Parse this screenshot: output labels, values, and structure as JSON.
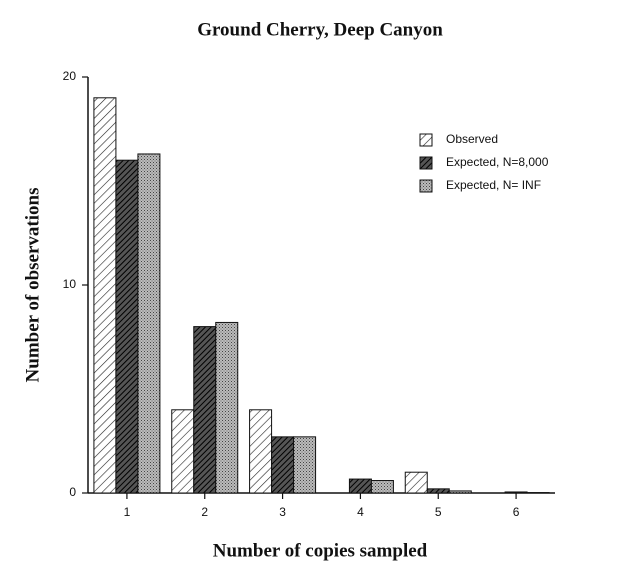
{
  "chart_data": {
    "type": "bar",
    "title": "Ground Cherry, Deep Canyon",
    "x_label": "Number of copies sampled",
    "y_label": "Number of observations",
    "categories": [
      "1",
      "2",
      "3",
      "4",
      "5",
      "6"
    ],
    "series": [
      {
        "name": "Observed",
        "color": "#ffffff",
        "pattern": "hatch-light",
        "values": [
          19,
          4,
          4,
          0,
          1,
          0
        ]
      },
      {
        "name": "Expected, N=8,000",
        "color": "#222222",
        "pattern": "hatch-dark",
        "values": [
          16,
          8,
          2.7,
          0.67,
          0.2,
          0.05
        ]
      },
      {
        "name": "Expected, N= INF",
        "color": "#999999",
        "pattern": "dots",
        "values": [
          16.3,
          8.2,
          2.7,
          0.6,
          0.1,
          0.02
        ]
      }
    ],
    "ylim": [
      0,
      20
    ],
    "yticks": [
      0,
      10,
      20
    ],
    "legend": "upper-right"
  }
}
